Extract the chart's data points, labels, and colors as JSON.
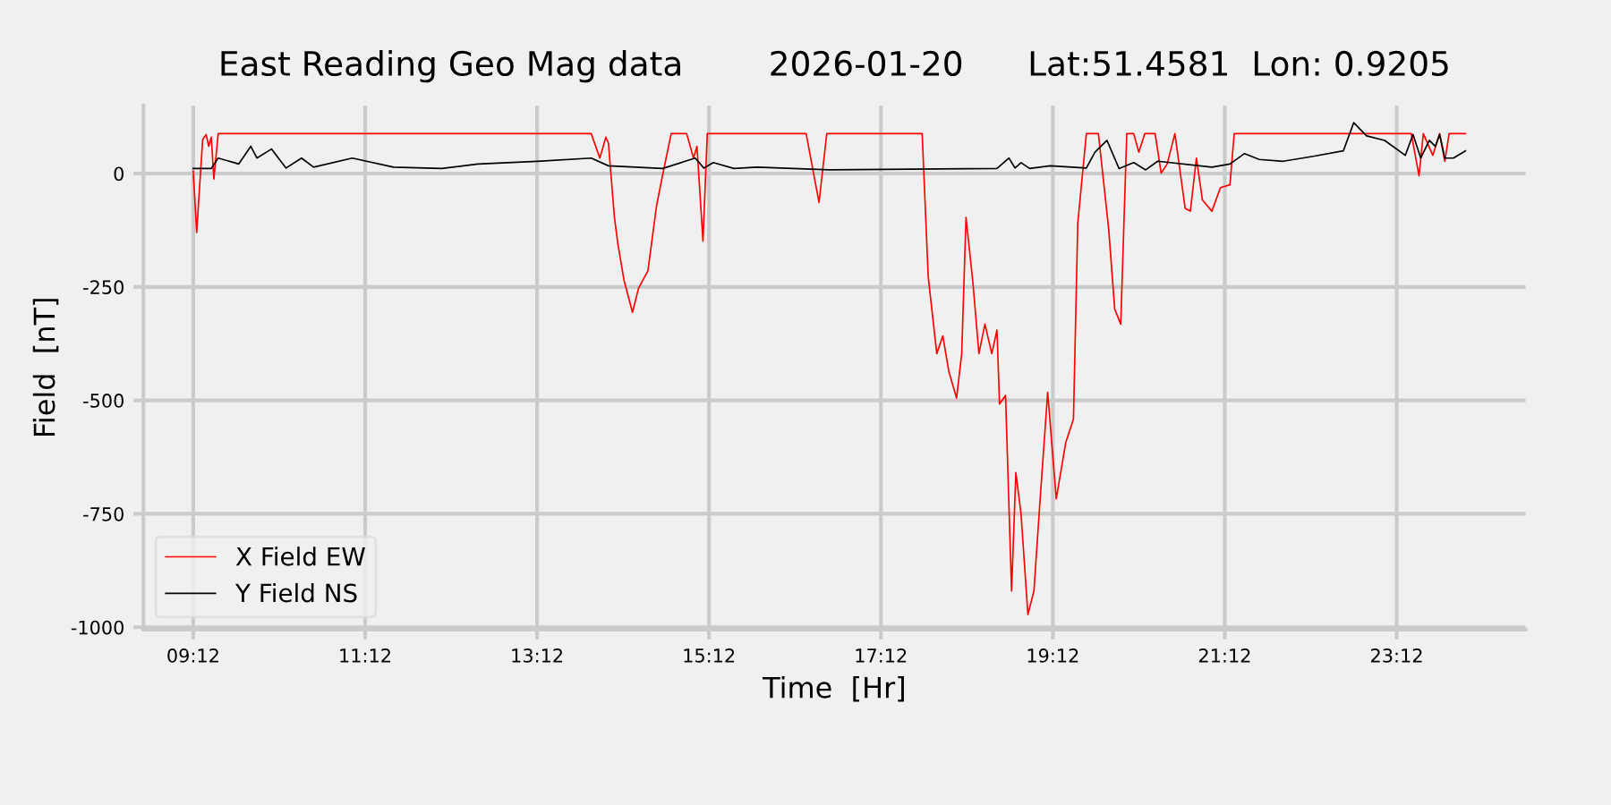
{
  "chart_data": {
    "type": "line",
    "title": "East Reading Geo Mag data        2026-01-20      Lat:51.4581  Lon: 0.9205",
    "xlabel": "Time  [Hr]",
    "ylabel": "Field  [nT]",
    "xlim": [
      8.62,
      24.7
    ],
    "ylim": [
      -1005,
      150
    ],
    "xticks": [
      {
        "value": 9.2,
        "label": "09:12"
      },
      {
        "value": 11.2,
        "label": "11:12"
      },
      {
        "value": 13.2,
        "label": "13:12"
      },
      {
        "value": 15.2,
        "label": "15:12"
      },
      {
        "value": 17.2,
        "label": "17:12"
      },
      {
        "value": 19.2,
        "label": "19:12"
      },
      {
        "value": 21.2,
        "label": "21:12"
      },
      {
        "value": 23.2,
        "label": "23:12"
      }
    ],
    "yticks": [
      0,
      -250,
      -500,
      -750,
      -1000
    ],
    "grid": true,
    "legend": "bottom left",
    "series": [
      {
        "name": "X Field EW",
        "color": "#ff0000",
        "x": [
          9.2,
          9.24,
          9.26,
          9.31,
          9.35,
          9.38,
          9.41,
          9.44,
          9.49,
          13.83,
          13.93,
          14.0,
          14.03,
          14.1,
          14.14,
          14.21,
          14.31,
          14.38,
          14.49,
          14.59,
          14.66,
          14.76,
          14.94,
          15.02,
          15.06,
          15.13,
          15.18,
          16.33,
          16.48,
          16.57,
          17.68,
          17.75,
          17.85,
          17.92,
          17.99,
          18.08,
          18.14,
          18.19,
          18.27,
          18.34,
          18.41,
          18.49,
          18.55,
          18.58,
          18.65,
          18.72,
          18.77,
          18.83,
          18.91,
          18.98,
          19.05,
          19.14,
          19.24,
          19.35,
          19.44,
          19.49,
          19.59,
          19.73,
          19.85,
          19.92,
          19.99,
          20.06,
          20.14,
          20.2,
          20.27,
          20.39,
          20.46,
          20.53,
          20.62,
          20.74,
          20.8,
          20.87,
          20.94,
          21.05,
          21.15,
          21.26,
          21.31,
          23.37,
          23.46,
          23.51,
          23.62,
          23.7,
          23.76,
          23.81,
          24.0
        ],
        "values": [
          5,
          -130,
          -70,
          75,
          86,
          60,
          80,
          -12,
          88,
          88,
          34,
          80,
          67,
          -97,
          -155,
          -234,
          -306,
          -253,
          -214,
          -71,
          -4,
          88,
          88,
          34,
          60,
          -149,
          88,
          88,
          -64,
          88,
          88,
          -227,
          -397,
          -358,
          -436,
          -495,
          -397,
          -97,
          -240,
          -397,
          -332,
          -397,
          -345,
          -508,
          -489,
          -920,
          -659,
          -750,
          -972,
          -920,
          -724,
          -482,
          -717,
          -593,
          -541,
          -110,
          88,
          88,
          -123,
          -299,
          -332,
          88,
          88,
          47,
          88,
          88,
          1,
          21,
          88,
          -77,
          -83,
          34,
          -58,
          -83,
          -31,
          -25,
          88,
          88,
          -5,
          88,
          40,
          88,
          27,
          88,
          88
        ]
      },
      {
        "name": "Y Field NS",
        "color": "#000000",
        "x": [
          9.2,
          9.41,
          9.49,
          9.73,
          9.87,
          9.94,
          10.11,
          10.28,
          10.46,
          10.6,
          11.05,
          11.53,
          12.09,
          12.51,
          13.2,
          13.83,
          14.03,
          14.66,
          15.04,
          15.14,
          15.25,
          15.49,
          15.76,
          16.6,
          18.55,
          18.69,
          18.76,
          18.83,
          18.93,
          19.17,
          19.59,
          19.69,
          19.83,
          19.97,
          20.14,
          20.28,
          20.42,
          21.05,
          21.26,
          21.43,
          21.6,
          21.88,
          22.23,
          22.58,
          22.7,
          22.85,
          23.06,
          23.3,
          23.39,
          23.48,
          23.58,
          23.65,
          23.7,
          23.76,
          23.86,
          24.0
        ],
        "values": [
          11,
          11,
          34,
          21,
          60,
          34,
          54,
          12,
          34,
          14,
          34,
          14,
          11,
          21,
          27,
          34,
          17,
          11,
          34,
          12,
          24,
          11,
          14,
          8,
          11,
          34,
          12,
          24,
          11,
          17,
          12,
          47,
          73,
          11,
          24,
          8,
          27,
          14,
          21,
          44,
          31,
          27,
          38,
          50,
          112,
          83,
          73,
          40,
          86,
          34,
          73,
          60,
          86,
          34,
          34,
          50
        ]
      }
    ]
  }
}
